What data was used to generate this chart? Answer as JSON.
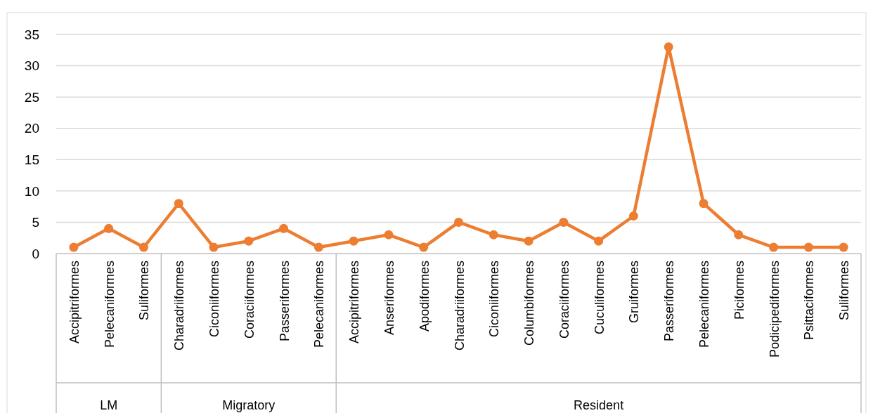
{
  "chart_data": {
    "type": "line",
    "categories": [
      "Accipitriformes",
      "Pelecaniformes",
      "Suliformes",
      "Charadriiformes",
      "Ciconiiformes",
      "Coraciiformes",
      "Passeriformes",
      "Pelecaniformes",
      "Accipitriformes",
      "Anseriformes",
      "Apodiformes",
      "Charadriiformes",
      "Ciconiiformes",
      "Columbiformes",
      "Coraciiformes",
      "Cuculiformes",
      "Gruiformes",
      "Passeriformes",
      "Pelecaniformes",
      "Piciformes",
      "Podicipediformes",
      "Psittaciformes",
      "Suliformes"
    ],
    "series": [
      {
        "color": "#ed7d31",
        "values": [
          1,
          4,
          1,
          8,
          1,
          2,
          4,
          1,
          2,
          3,
          1,
          5,
          3,
          2,
          5,
          2,
          6,
          33,
          8,
          3,
          1,
          1,
          1
        ]
      }
    ],
    "annotations": [
      "LM",
      "Migratory",
      "Resident"
    ],
    "ylim": [
      0,
      35
    ],
    "yticks": [
      0,
      5,
      10,
      15,
      20,
      25,
      30,
      35
    ],
    "grid": "y",
    "marker": "circle",
    "line_style": "solid"
  }
}
